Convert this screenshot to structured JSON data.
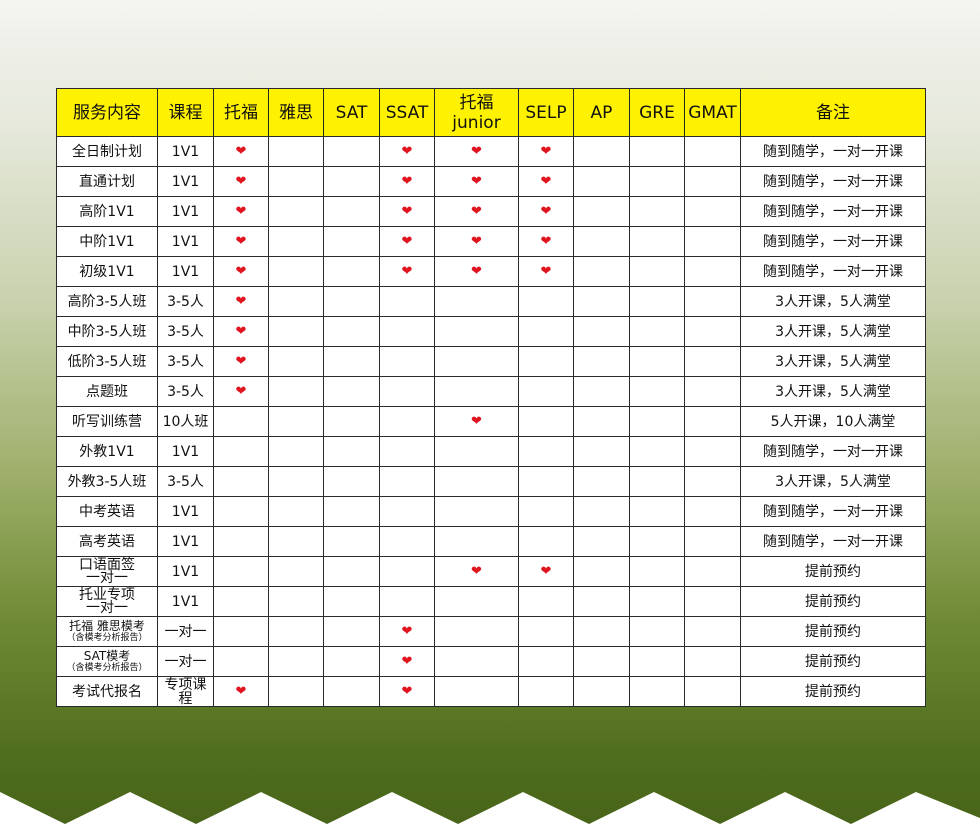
{
  "headers": [
    "服务内容",
    "课程",
    "托福",
    "雅思",
    "SAT",
    "SSAT",
    "托福",
    "junior",
    "SELP",
    "AP",
    "GRE",
    "GMAT",
    "备注"
  ],
  "heart": "❤",
  "rows": [
    {
      "name": "全日制计划",
      "course": "1V1",
      "hearts": [
        1,
        0,
        0,
        1,
        1,
        1,
        0,
        0,
        0
      ],
      "note": "随到随学，一对一开课"
    },
    {
      "name": "直通计划",
      "course": "1V1",
      "hearts": [
        1,
        0,
        0,
        1,
        1,
        1,
        0,
        0,
        0
      ],
      "note": "随到随学，一对一开课"
    },
    {
      "name": "高阶1V1",
      "course": "1V1",
      "hearts": [
        1,
        0,
        0,
        1,
        1,
        1,
        0,
        0,
        0
      ],
      "note": "随到随学，一对一开课"
    },
    {
      "name": "中阶1V1",
      "course": "1V1",
      "hearts": [
        1,
        0,
        0,
        1,
        1,
        1,
        0,
        0,
        0
      ],
      "note": "随到随学，一对一开课"
    },
    {
      "name": "初级1V1",
      "course": "1V1",
      "hearts": [
        1,
        0,
        0,
        1,
        1,
        1,
        0,
        0,
        0
      ],
      "note": "随到随学，一对一开课"
    },
    {
      "name": "高阶3-5人班",
      "course": "3-5人",
      "hearts": [
        1,
        0,
        0,
        0,
        0,
        0,
        0,
        0,
        0
      ],
      "note": "3人开课，5人满堂"
    },
    {
      "name": "中阶3-5人班",
      "course": "3-5人",
      "hearts": [
        1,
        0,
        0,
        0,
        0,
        0,
        0,
        0,
        0
      ],
      "note": "3人开课，5人满堂"
    },
    {
      "name": "低阶3-5人班",
      "course": "3-5人",
      "hearts": [
        1,
        0,
        0,
        0,
        0,
        0,
        0,
        0,
        0
      ],
      "note": "3人开课，5人满堂"
    },
    {
      "name": "点题班",
      "course": "3-5人",
      "hearts": [
        1,
        0,
        0,
        0,
        0,
        0,
        0,
        0,
        0
      ],
      "note": "3人开课，5人满堂"
    },
    {
      "name": "听写训练营",
      "course": "10人班",
      "hearts": [
        0,
        0,
        0,
        0,
        1,
        0,
        0,
        0,
        0
      ],
      "note": "5人开课，10人满堂"
    },
    {
      "name": "外教1V1",
      "course": "1V1",
      "hearts": [
        0,
        0,
        0,
        0,
        0,
        0,
        0,
        0,
        0
      ],
      "note": "随到随学，一对一开课"
    },
    {
      "name": "外教3-5人班",
      "course": "3-5人",
      "hearts": [
        0,
        0,
        0,
        0,
        0,
        0,
        0,
        0,
        0
      ],
      "note": "3人开课，5人满堂"
    },
    {
      "name": "中考英语",
      "course": "1V1",
      "hearts": [
        0,
        0,
        0,
        0,
        0,
        0,
        0,
        0,
        0
      ],
      "note": "随到随学，一对一开课"
    },
    {
      "name": "高考英语",
      "course": "1V1",
      "hearts": [
        0,
        0,
        0,
        0,
        0,
        0,
        0,
        0,
        0
      ],
      "note": "随到随学，一对一开课"
    },
    {
      "name": "口语面签",
      "name2": "一对一",
      "course": "1V1",
      "hearts": [
        0,
        0,
        0,
        0,
        1,
        1,
        0,
        0,
        0
      ],
      "note": "提前预约"
    },
    {
      "name": "托业专项",
      "name2": "一对一",
      "course": "1V1",
      "hearts": [
        0,
        0,
        0,
        0,
        0,
        0,
        0,
        0,
        0
      ],
      "note": "提前预约"
    },
    {
      "name": "托福 雅思模考",
      "name2": "（含模考分析报告）",
      "course": "一对一",
      "hearts": [
        0,
        0,
        0,
        1,
        0,
        0,
        0,
        0,
        0
      ],
      "note": "提前预约"
    },
    {
      "name": "SAT模考",
      "name2": "（含模考分析报告）",
      "course": "一对一",
      "hearts": [
        0,
        0,
        0,
        1,
        0,
        0,
        0,
        0,
        0
      ],
      "note": "提前预约"
    },
    {
      "name": "考试代报名",
      "course": "专项课程",
      "hearts": [
        1,
        0,
        0,
        1,
        0,
        0,
        0,
        0,
        0
      ],
      "note": "提前预约"
    }
  ]
}
